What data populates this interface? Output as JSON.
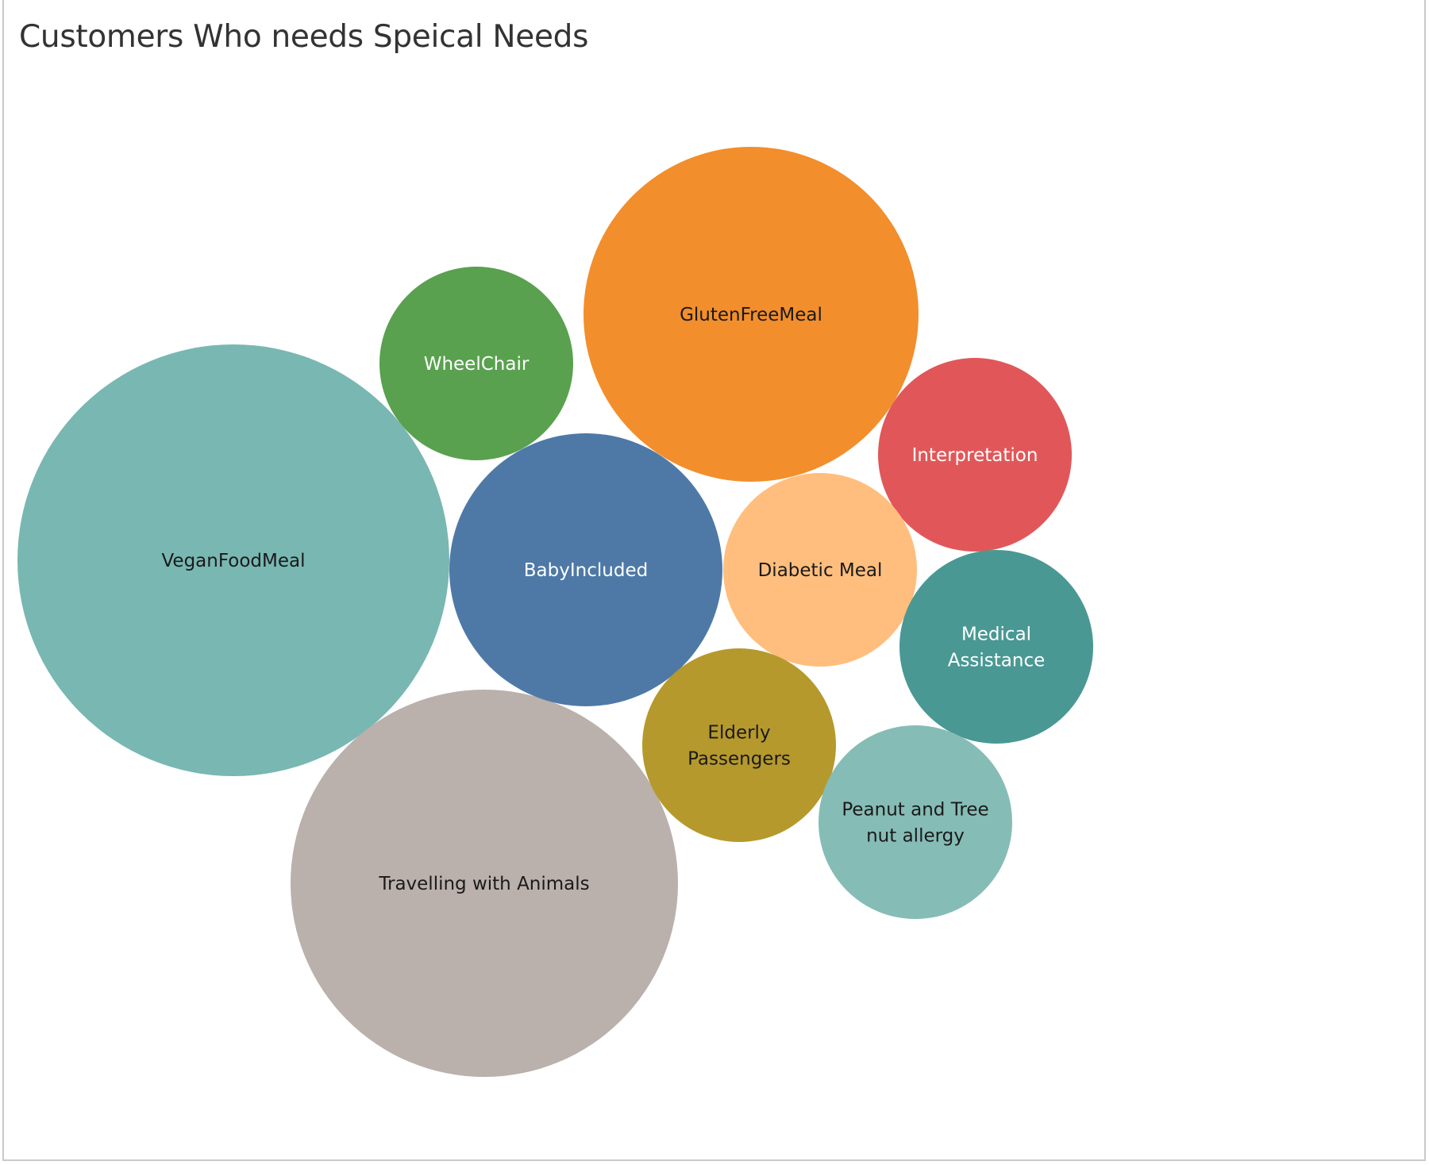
{
  "chart_data": {
    "type": "packed-bubble",
    "title": "Customers Who needs Speical Needs",
    "legend": "none",
    "grid": false,
    "bubbles": [
      {
        "name": "VeganFoodMeal",
        "lines": [
          "VeganFoodMeal"
        ],
        "color": "#79B7B2",
        "text_color": "#1a1a1a",
        "relative_size": 100
      },
      {
        "name": "Travelling with Animals",
        "lines": [
          "Travelling with Animals"
        ],
        "color": "#BAB0AC",
        "text_color": "#1a1a1a",
        "relative_size": 80
      },
      {
        "name": "GlutenFreeMeal",
        "lines": [
          "GlutenFreeMeal"
        ],
        "color": "#F28E2C",
        "text_color": "#1a1a1a",
        "relative_size": 60
      },
      {
        "name": "BabyIncluded",
        "lines": [
          "BabyIncluded"
        ],
        "color": "#4E79A7",
        "text_color": "#ffffff",
        "relative_size": 40
      },
      {
        "name": "WheelChair",
        "lines": [
          "WheelChair"
        ],
        "color": "#59A14F",
        "text_color": "#ffffff",
        "relative_size": 20
      },
      {
        "name": "Interpretation",
        "lines": [
          "Interpretation"
        ],
        "color": "#E15759",
        "text_color": "#ffffff",
        "relative_size": 20
      },
      {
        "name": "Diabetic Meal",
        "lines": [
          "Diabetic Meal"
        ],
        "color": "#FFBE7D",
        "text_color": "#1a1a1a",
        "relative_size": 20
      },
      {
        "name": "Medical Assistance",
        "lines": [
          "Medical",
          "Assistance"
        ],
        "color": "#499894",
        "text_color": "#ffffff",
        "relative_size": 20
      },
      {
        "name": "Elderly Passengers",
        "lines": [
          "Elderly",
          "Passengers"
        ],
        "color": "#B6992D",
        "text_color": "#1a1a1a",
        "relative_size": 20
      },
      {
        "name": "Peanut and Tree nut allergy",
        "lines": [
          "Peanut and Tree",
          "nut allergy"
        ],
        "color": "#86BCB6",
        "text_color": "#1a1a1a",
        "relative_size": 20
      }
    ]
  }
}
